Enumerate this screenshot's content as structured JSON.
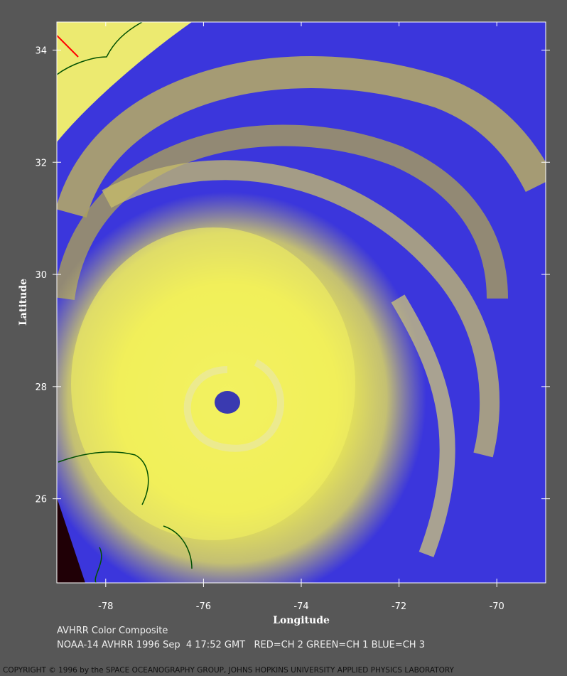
{
  "map": {
    "xlabel": "Longitude",
    "ylabel": "Latitude",
    "xlim": [
      -79,
      -69
    ],
    "ylim": [
      24.5,
      34.5
    ],
    "xticks": [
      -78,
      -76,
      -74,
      -72,
      -70
    ],
    "yticks": [
      26,
      28,
      30,
      32,
      34
    ]
  },
  "caption": [
    "AVHRR Color Composite",
    "NOAA-14 AVHRR 1996 Sep  4 17:52 GMT   RED=CH 2 GREEN=CH 1 BLUE=CH 3"
  ],
  "copyright": "COPYRIGHT © 1996 by the SPACE OCEANOGRAPHY GROUP, JOHNS HOPKINS UNIVERSITY APPLIED PHYSICS LABORATORY"
}
